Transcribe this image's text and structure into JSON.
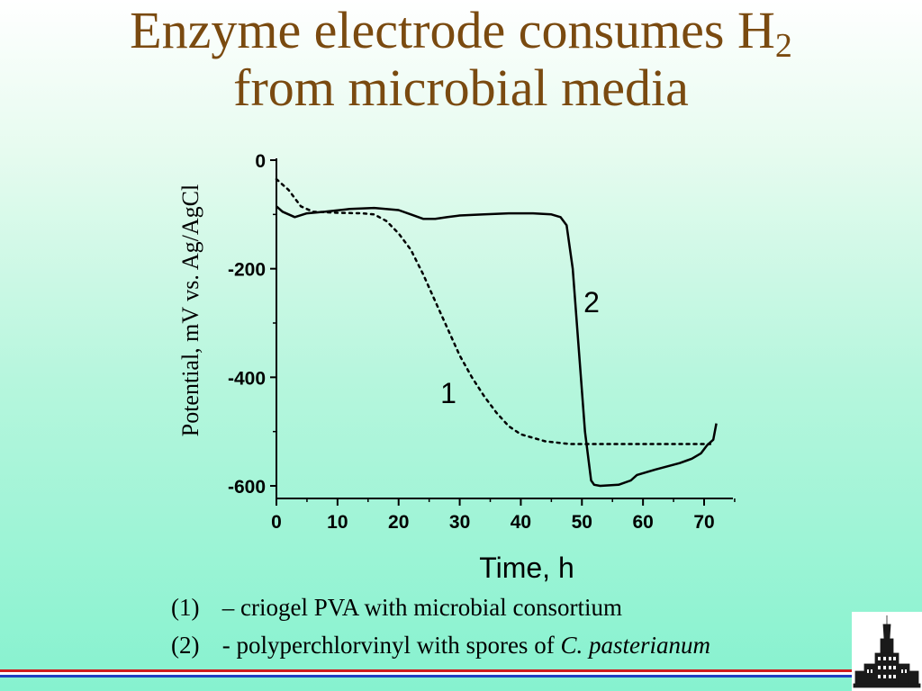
{
  "title": {
    "line1_prefix": "Enzyme electrode consumes H",
    "line1_sub": "2",
    "line2": "from microbial media"
  },
  "chart_data": {
    "type": "line",
    "title": "",
    "xlabel": "Time, h",
    "ylabel": "Potential, mV vs. Ag/AgCl",
    "xlim": [
      0,
      72
    ],
    "ylim": [
      -600,
      0
    ],
    "x_ticks": [
      "0",
      "10",
      "20",
      "30",
      "40",
      "50",
      "60",
      "70"
    ],
    "y_ticks": [
      "0",
      "-200",
      "-400",
      "-600"
    ],
    "grid": false,
    "series": [
      {
        "name": "1",
        "style": "dotted",
        "x": [
          0,
          2,
          4,
          6,
          10,
          14,
          16,
          18,
          20,
          22,
          24,
          26,
          28,
          30,
          32,
          34,
          36,
          38,
          40,
          44,
          48,
          52,
          56,
          60,
          64,
          68,
          71
        ],
        "y": [
          -35,
          -55,
          -85,
          -95,
          -97,
          -98,
          -100,
          -112,
          -135,
          -165,
          -210,
          -260,
          -310,
          -360,
          -400,
          -435,
          -465,
          -490,
          -505,
          -518,
          -523,
          -523,
          -523,
          -523,
          -523,
          -523,
          -523
        ]
      },
      {
        "name": "2",
        "style": "solid",
        "x": [
          0,
          1,
          2,
          3,
          5,
          8,
          12,
          16,
          20,
          22,
          24,
          26,
          28,
          30,
          34,
          38,
          42,
          45,
          46.5,
          47.5,
          48.5,
          49.5,
          50.5,
          51.5,
          52,
          53,
          56,
          58,
          59,
          62,
          66,
          68,
          69.5,
          70.5,
          71.5,
          72
        ],
        "y": [
          -85,
          -95,
          -100,
          -105,
          -98,
          -95,
          -90,
          -88,
          -92,
          -100,
          -108,
          -108,
          -105,
          -102,
          -100,
          -98,
          -98,
          -100,
          -105,
          -120,
          -200,
          -350,
          -500,
          -590,
          -598,
          -600,
          -598,
          -590,
          -580,
          -570,
          -558,
          -550,
          -540,
          -525,
          -515,
          -485
        ]
      }
    ],
    "annotations": [
      "1",
      "2"
    ],
    "colors": {
      "axis": "#000000",
      "line": "#000000"
    }
  },
  "captions": [
    {
      "num": "(1)",
      "text": " – criogel PVA with microbial consortium",
      "italic": ""
    },
    {
      "num": "(2)",
      "text": " - polyperchlorvinyl with spores of ",
      "italic": "C. pasterianum"
    }
  ],
  "stripe_colors": [
    "#d01c1c",
    "#ffffff",
    "#2040c0"
  ],
  "colors": {
    "title": "#7a4a10"
  }
}
